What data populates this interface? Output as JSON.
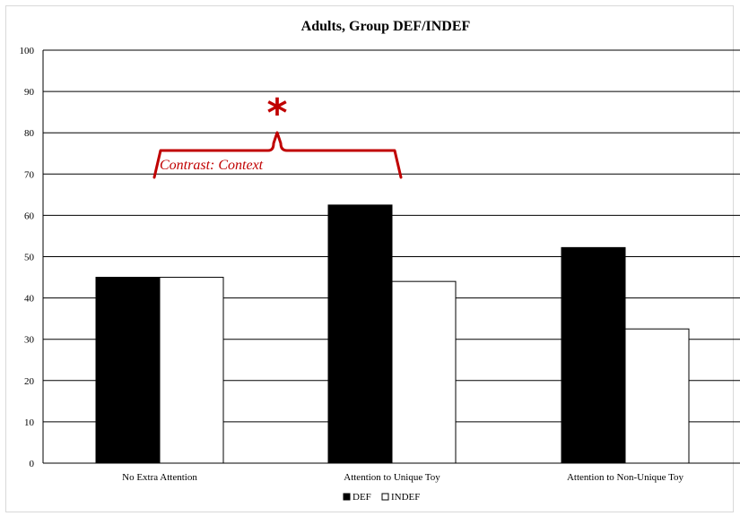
{
  "chart_data": {
    "type": "bar",
    "title": "Adults,  Group DEF/INDEF",
    "categories": [
      "No Extra Attention",
      "Attention to Unique Toy",
      "Attention to Non-Unique Toy"
    ],
    "series": [
      {
        "name": "DEF",
        "values": [
          45,
          62.5,
          52.2
        ],
        "color": "#000000"
      },
      {
        "name": "INDEF",
        "values": [
          45,
          44,
          32.5
        ],
        "color": "#ffffff"
      }
    ],
    "ylim": [
      0,
      100
    ],
    "yticks": [
      "0",
      "10",
      "20",
      "30",
      "40",
      "50",
      "60",
      "70",
      "80",
      "90",
      "100"
    ],
    "grid": true,
    "legend_position": "bottom",
    "annotations": {
      "bracket_label": "Contrast: Context",
      "significance_mark": "*",
      "accent_color": "#c00000"
    }
  }
}
